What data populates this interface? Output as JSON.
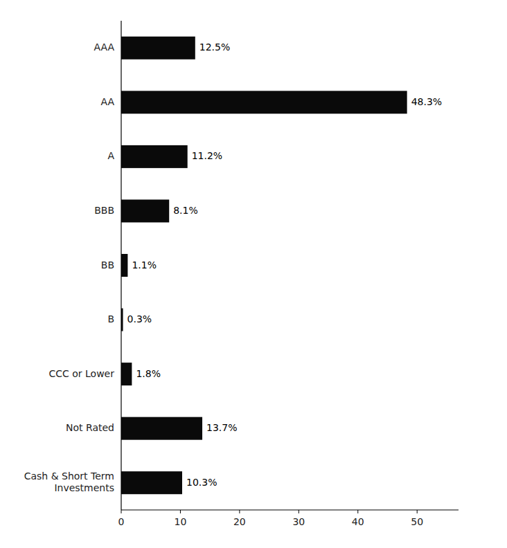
{
  "chart_data": {
    "type": "bar",
    "orientation": "horizontal",
    "categories": [
      "AAA",
      "AA",
      "A",
      "BBB",
      "BB",
      "B",
      "CCC or Lower",
      "Not Rated",
      "Cash & Short Term\nInvestments"
    ],
    "values": [
      12.5,
      48.3,
      11.2,
      8.1,
      1.1,
      0.3,
      1.8,
      13.7,
      10.3
    ],
    "value_labels": [
      "12.5%",
      "48.3%",
      "11.2%",
      "8.1%",
      "1.1%",
      "0.3%",
      "1.8%",
      "13.7%",
      "10.3%"
    ],
    "data_labels": true,
    "color": "#0a0a0a",
    "xlim": [
      0,
      57
    ],
    "xticks": [
      0,
      10,
      20,
      30,
      40,
      50
    ],
    "grid": false
  }
}
